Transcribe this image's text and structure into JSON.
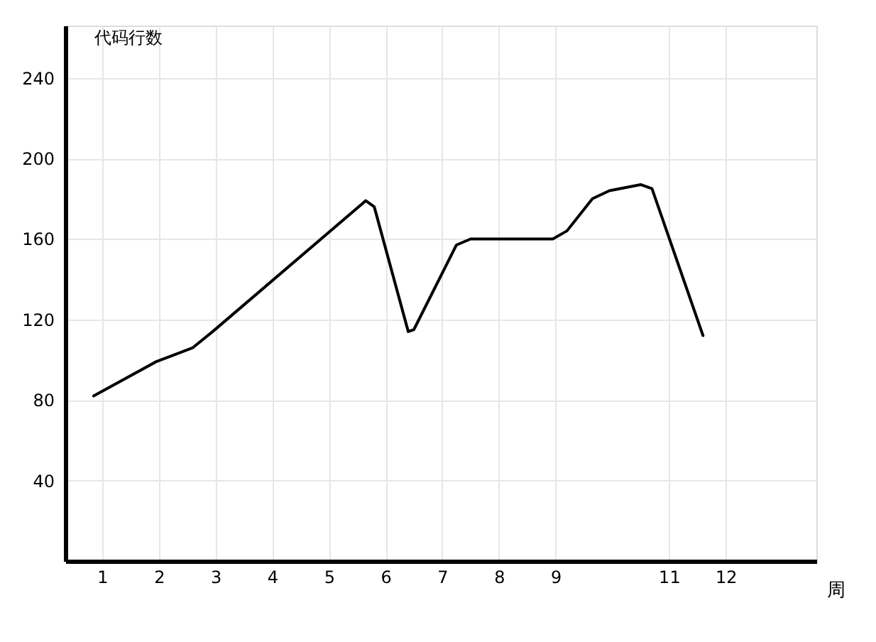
{
  "chart_data": {
    "type": "line",
    "xlabel": "周",
    "ylabel": "代码行数",
    "x": [
      0.85,
      1.95,
      2.6,
      2.95,
      5.65,
      5.8,
      6.4,
      6.5,
      7.25,
      7.5,
      8.95,
      9.2,
      9.65,
      9.95,
      10.5,
      10.7,
      11.6
    ],
    "series": [
      {
        "color": "#000000",
        "values": [
          82,
          99,
          106,
          114,
          179,
          176,
          114,
          115,
          157,
          160,
          160,
          164,
          180,
          184,
          187,
          185,
          112
        ]
      }
    ],
    "xlim": [
      0.35,
      13.6
    ],
    "xticks": [
      1,
      2,
      3,
      4,
      5,
      6,
      7,
      8,
      9,
      11,
      12
    ],
    "ylim": [
      0,
      266
    ],
    "yticks": [
      40,
      80,
      120,
      160,
      200,
      240
    ],
    "grid": true,
    "marker": "none",
    "line_style": "solid"
  }
}
